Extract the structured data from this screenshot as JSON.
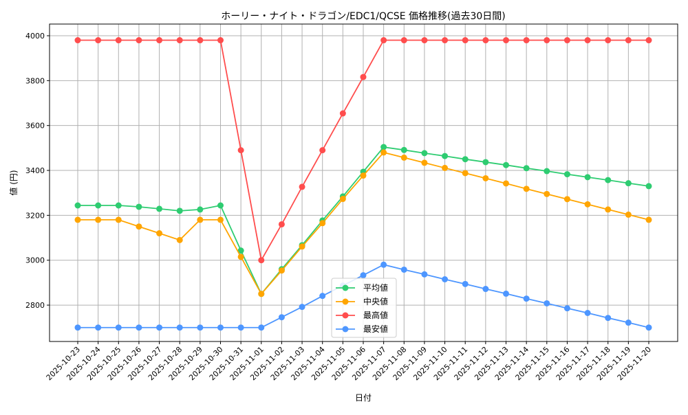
{
  "chart_data": {
    "type": "line",
    "title": "ホーリー・ナイト・ドラゴン/EDC1/QCSE 価格推移(過去30日間)",
    "xlabel": "日付",
    "ylabel": "値 (円)",
    "ylim": [
      2638,
      4052
    ],
    "yticks": [
      2800,
      3000,
      3200,
      3400,
      3600,
      3800,
      4000
    ],
    "grid": true,
    "legend_position": "lower-center",
    "x": [
      "2025-10-23",
      "2025-10-24",
      "2025-10-25",
      "2025-10-26",
      "2025-10-27",
      "2025-10-28",
      "2025-10-29",
      "2025-10-30",
      "2025-10-31",
      "2025-11-01",
      "2025-11-02",
      "2025-11-03",
      "2025-11-04",
      "2025-11-05",
      "2025-11-06",
      "2025-11-07",
      "2025-11-08",
      "2025-11-09",
      "2025-11-10",
      "2025-11-11",
      "2025-11-12",
      "2025-11-13",
      "2025-11-14",
      "2025-11-15",
      "2025-11-16",
      "2025-11-17",
      "2025-11-18",
      "2025-11-19",
      "2025-11-20"
    ],
    "series": [
      {
        "name": "平均値",
        "color": "#2ecc71",
        "values": [
          3244,
          3244,
          3244,
          3238,
          3229,
          3220,
          3226,
          3244,
          3043,
          2850,
          2960,
          3067,
          3177,
          3284,
          3394,
          3504,
          3491,
          3477,
          3464,
          3450,
          3437,
          3424,
          3410,
          3397,
          3383,
          3370,
          3357,
          3343,
          3330
        ]
      },
      {
        "name": "中央値",
        "color": "#ffa500",
        "values": [
          3180,
          3180,
          3180,
          3150,
          3120,
          3090,
          3180,
          3180,
          3015,
          2850,
          2954,
          3061,
          3165,
          3273,
          3377,
          3480,
          3457,
          3434,
          3411,
          3388,
          3365,
          3342,
          3318,
          3295,
          3272,
          3249,
          3226,
          3203,
          3180
        ]
      },
      {
        "name": "最高値",
        "color": "#ff4d4d",
        "values": [
          3980,
          3980,
          3980,
          3980,
          3980,
          3980,
          3980,
          3980,
          3490,
          3000,
          3160,
          3327,
          3490,
          3654,
          3816,
          3980,
          3980,
          3980,
          3980,
          3980,
          3980,
          3980,
          3980,
          3980,
          3980,
          3980,
          3980,
          3980,
          3980
        ]
      },
      {
        "name": "最安値",
        "color": "#4d96ff",
        "values": [
          2700,
          2700,
          2700,
          2700,
          2700,
          2700,
          2700,
          2700,
          2700,
          2700,
          2746,
          2792,
          2841,
          2887,
          2933,
          2980,
          2958,
          2937,
          2915,
          2894,
          2872,
          2851,
          2829,
          2808,
          2786,
          2765,
          2743,
          2722,
          2700
        ]
      }
    ]
  }
}
